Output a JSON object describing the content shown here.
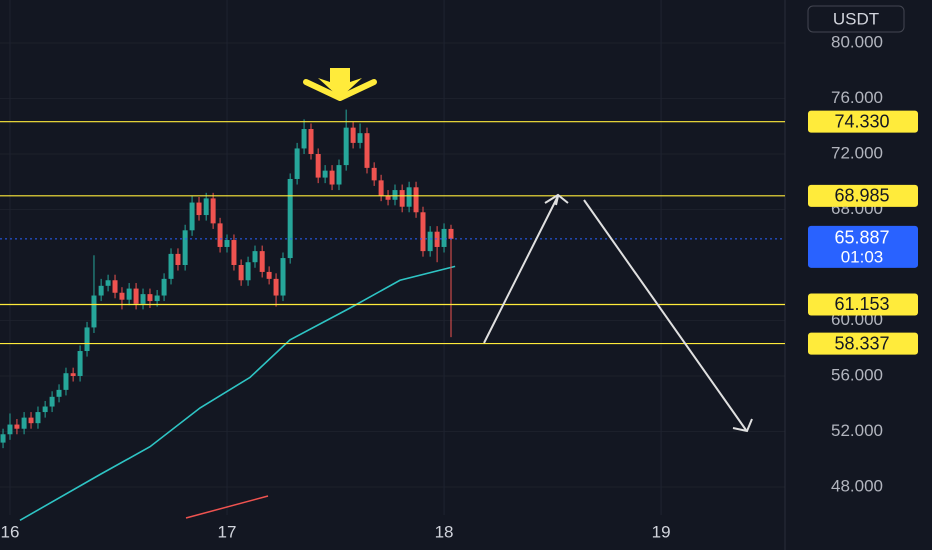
{
  "chart_data": {
    "type": "candlestick",
    "currency": "USDT",
    "x": [
      15.968,
      16.0,
      16.032,
      16.065,
      16.097,
      16.129,
      16.162,
      16.194,
      16.226,
      16.258,
      16.291,
      16.323,
      16.355,
      16.387,
      16.42,
      16.452,
      16.484,
      16.516,
      16.549,
      16.581,
      16.613,
      16.645,
      16.678,
      16.71,
      16.742,
      16.774,
      16.807,
      16.839,
      16.871,
      16.904,
      16.936,
      16.968,
      17.0,
      17.032,
      17.065,
      17.097,
      17.129,
      17.162,
      17.194,
      17.226,
      17.258,
      17.291,
      17.323,
      17.355,
      17.387,
      17.42,
      17.452,
      17.484,
      17.516,
      17.549,
      17.581,
      17.613,
      17.645,
      17.678,
      17.71,
      17.742,
      17.774,
      17.807,
      17.839,
      17.871,
      17.903,
      17.936,
      17.968,
      18.0,
      18.032
    ],
    "open": [
      51.2,
      51.8,
      52.5,
      52.2,
      53.0,
      52.6,
      53.4,
      53.8,
      54.5,
      55.0,
      56.2,
      56.0,
      57.8,
      59.5,
      61.8,
      62.5,
      62.9,
      62.0,
      61.5,
      62.3,
      61.2,
      61.9,
      61.4,
      61.8,
      63.0,
      64.8,
      64.0,
      66.5,
      68.5,
      67.6,
      68.8,
      67.0,
      65.3,
      65.8,
      64.0,
      62.9,
      64.2,
      65.0,
      63.5,
      63.0,
      61.8,
      64.5,
      70.2,
      72.4,
      73.8,
      72.0,
      70.3,
      70.8,
      69.8,
      71.2,
      73.9,
      72.8,
      73.5,
      71.0,
      70.1,
      69.0,
      68.7,
      69.4,
      68.2,
      69.6,
      67.8,
      65.0,
      66.4,
      65.3,
      66.6
    ],
    "high": [
      52.2,
      53.3,
      52.9,
      53.4,
      53.4,
      53.8,
      54.2,
      54.9,
      55.4,
      56.6,
      56.6,
      58.2,
      59.9,
      64.7,
      63.0,
      63.3,
      63.3,
      62.4,
      62.7,
      62.7,
      62.3,
      62.3,
      62.2,
      63.4,
      65.2,
      65.2,
      66.9,
      69.0,
      68.9,
      69.2,
      69.2,
      67.4,
      66.2,
      66.2,
      64.4,
      64.6,
      65.4,
      65.4,
      63.9,
      63.4,
      64.9,
      70.6,
      72.8,
      74.5,
      74.2,
      72.4,
      71.2,
      71.2,
      71.6,
      75.2,
      74.3,
      74.2,
      73.9,
      71.4,
      70.5,
      69.4,
      69.8,
      69.8,
      70.0,
      70.0,
      68.2,
      66.8,
      66.8,
      67.0,
      66.9
    ],
    "low": [
      50.8,
      51.4,
      51.8,
      51.8,
      52.2,
      52.2,
      53.0,
      53.4,
      54.1,
      54.6,
      55.6,
      55.6,
      57.4,
      59.1,
      61.4,
      62.1,
      61.6,
      60.8,
      61.1,
      60.8,
      60.8,
      60.9,
      61.0,
      61.4,
      62.6,
      63.6,
      63.6,
      66.1,
      67.2,
      67.2,
      66.6,
      64.9,
      64.9,
      63.6,
      62.5,
      62.5,
      63.8,
      63.1,
      62.6,
      61.0,
      61.4,
      64.1,
      69.8,
      72.0,
      71.6,
      69.9,
      69.9,
      69.4,
      69.4,
      70.8,
      72.4,
      72.4,
      70.6,
      69.7,
      68.6,
      68.3,
      68.3,
      67.8,
      67.8,
      67.4,
      64.6,
      64.6,
      64.2,
      64.9,
      58.8
    ],
    "close": [
      51.8,
      52.5,
      52.2,
      53.0,
      52.6,
      53.4,
      53.8,
      54.5,
      55.0,
      56.2,
      56.0,
      57.8,
      59.5,
      61.8,
      62.5,
      62.9,
      62.0,
      61.5,
      62.3,
      61.2,
      61.9,
      61.4,
      61.8,
      63.0,
      64.8,
      64.0,
      66.5,
      68.5,
      67.6,
      68.8,
      67.0,
      65.3,
      65.8,
      64.0,
      62.9,
      64.2,
      65.0,
      63.5,
      63.0,
      61.8,
      64.5,
      70.2,
      72.4,
      73.8,
      72.0,
      70.3,
      70.8,
      69.8,
      71.2,
      73.9,
      72.8,
      73.5,
      71.0,
      70.1,
      69.0,
      68.7,
      69.4,
      68.2,
      69.6,
      67.8,
      65.0,
      66.4,
      65.3,
      66.6,
      65.887
    ],
    "up_color": "#26a69a",
    "down_color": "#ef5350",
    "moving_average": {
      "color": "#2ec4c4",
      "x": [
        16.046,
        16.415,
        16.645,
        16.876,
        17.106,
        17.29,
        17.567,
        17.797,
        18.051
      ],
      "values": [
        45.6,
        48.9,
        50.9,
        53.7,
        55.9,
        58.6,
        60.9,
        62.9,
        63.9
      ]
    },
    "levels": {
      "color": "#ffeb3b",
      "values": [
        74.33,
        68.985,
        61.153,
        58.337
      ],
      "value_labels": [
        "74.330",
        "68.985",
        "61.153",
        "58.337"
      ]
    },
    "last_price": {
      "value": 65.887,
      "label": "65.887",
      "countdown": "01:03",
      "color": "#2962ff"
    },
    "xlim": [
      15.954,
      19.571
    ],
    "xticks": [
      16,
      17,
      18,
      19
    ],
    "ylim": [
      43.459,
      83.099
    ],
    "yticks": [
      {
        "value": 80,
        "label": "80.000"
      },
      {
        "value": 76,
        "label": "76.000"
      },
      {
        "value": 72,
        "label": "72.000"
      },
      {
        "value": 68,
        "label": "68.000"
      },
      {
        "value": 60,
        "label": "60.000"
      },
      {
        "value": 56,
        "label": "56.000"
      },
      {
        "value": 52,
        "label": "52.000"
      },
      {
        "value": 48,
        "label": "48.000"
      }
    ],
    "grid": true
  }
}
